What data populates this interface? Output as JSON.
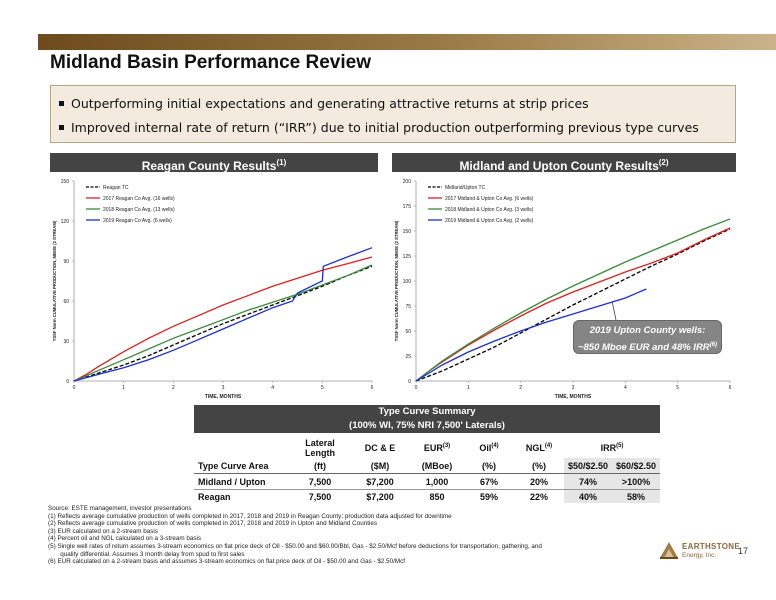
{
  "page": {
    "title": "Midland Basin Performance Review",
    "bullets": [
      "Outperforming initial expectations and generating attractive returns at strip prices",
      "Improved internal rate of return (“IRR”) due to initial production outperforming previous type curves"
    ],
    "page_number": "17"
  },
  "headers": {
    "left": "Reagan County Results",
    "left_sup": "(1)",
    "right": "Midland and Upton County Results",
    "right_sup": "(2)"
  },
  "callout": {
    "line1": "2019 Upton County wells:",
    "line2": "~850 Mboe EUR and 48% IRR",
    "sup": "(6)"
  },
  "chart_data": [
    {
      "type": "line",
      "title": "Reagan County Results(1)",
      "xlabel": "TIME, MONTHS",
      "ylabel": "TSSF Norm CUMULATIVE PRODUCTION, MBOE (2 STREAM)",
      "xlim": [
        0,
        6
      ],
      "ylim": [
        0,
        150
      ],
      "xticks": [
        0,
        1,
        2,
        3,
        4,
        5,
        6
      ],
      "yticks": [
        0,
        30,
        60,
        90,
        120,
        150
      ],
      "legend_position": "top-left",
      "series": [
        {
          "name": "Reagan TC",
          "color": "#000000",
          "dashed": true,
          "x": [
            0,
            0.5,
            1,
            1.5,
            2,
            2.5,
            3,
            3.5,
            4,
            4.5,
            5,
            5.5,
            6
          ],
          "y": [
            0,
            6,
            12,
            19,
            27,
            35,
            43,
            50,
            57,
            64,
            71,
            79,
            86
          ]
        },
        {
          "name": "2017 Reagan Co Avg. (16 wells)",
          "color": "#e02020",
          "dashed": false,
          "x": [
            0,
            0.25,
            0.5,
            1,
            1.5,
            2,
            2.5,
            3,
            3.5,
            4,
            4.5,
            5,
            5.5,
            6
          ],
          "y": [
            0,
            5,
            11,
            22,
            32,
            41,
            49,
            57,
            64,
            71,
            77,
            83,
            88,
            93
          ]
        },
        {
          "name": "2018 Reagan Co Avg. (13 wells)",
          "color": "#3a8a3a",
          "dashed": false,
          "x": [
            0,
            0.25,
            0.5,
            1,
            1.5,
            2,
            2.5,
            3,
            3.5,
            4,
            4.5,
            5,
            5.5,
            6
          ],
          "y": [
            0,
            4,
            8,
            16,
            24,
            32,
            39,
            46,
            53,
            59,
            65,
            72,
            79,
            87
          ]
        },
        {
          "name": "2019 Reagan Co Avg. (6 wells)",
          "color": "#1a2fd0",
          "dashed": false,
          "x": [
            0,
            0.5,
            1,
            1.5,
            2,
            2.5,
            3,
            3.5,
            4,
            4.4,
            4.5,
            5,
            5.02,
            5.5,
            6
          ],
          "y": [
            0,
            5,
            10,
            16,
            23,
            31,
            39,
            47,
            55,
            60,
            66,
            75,
            86,
            93,
            100
          ]
        }
      ]
    },
    {
      "type": "line",
      "title": "Midland and Upton County Results(2)",
      "xlabel": "TIME, MONTHS",
      "ylabel": "TSSF Norm CUMULATIVE PRODUCTION, MBOE (2 STREAM)",
      "xlim": [
        0,
        6
      ],
      "ylim": [
        0,
        200
      ],
      "xticks": [
        0,
        1,
        2,
        3,
        4,
        5,
        6
      ],
      "yticks": [
        0,
        25,
        50,
        75,
        100,
        125,
        150,
        175,
        200
      ],
      "legend_position": "top-left",
      "series": [
        {
          "name": "Midland/Upton TC",
          "color": "#000000",
          "dashed": true,
          "x": [
            0,
            0.5,
            1,
            1.5,
            2,
            2.5,
            3,
            3.5,
            4,
            4.5,
            5,
            5.5,
            6
          ],
          "y": [
            0,
            10,
            22,
            34,
            48,
            62,
            76,
            89,
            102,
            115,
            127,
            140,
            152
          ]
        },
        {
          "name": "2017 Midland & Upton Co Avg. (6 wells)",
          "color": "#e02020",
          "dashed": false,
          "x": [
            0,
            0.25,
            0.5,
            1,
            1.5,
            2,
            2.5,
            3,
            3.5,
            4,
            4.5,
            5,
            5.5,
            6
          ],
          "y": [
            0,
            10,
            19,
            36,
            51,
            65,
            78,
            89,
            99,
            109,
            118,
            128,
            141,
            153
          ]
        },
        {
          "name": "2018 Midland & Upton Co Avg. (3 wells)",
          "color": "#3a8a3a",
          "dashed": false,
          "x": [
            0,
            0.25,
            0.5,
            1,
            1.5,
            2,
            2.5,
            3,
            3.5,
            4,
            4.5,
            5,
            5.5,
            6
          ],
          "y": [
            0,
            10,
            20,
            37,
            53,
            68,
            82,
            95,
            107,
            119,
            130,
            141,
            152,
            162
          ]
        },
        {
          "name": "2019 Midland & Upton Co Avg. (2 wells)",
          "color": "#1a2fd0",
          "dashed": false,
          "x": [
            0,
            0.25,
            0.5,
            1,
            1.5,
            2,
            2.5,
            3,
            3.5,
            4,
            4.4
          ],
          "y": [
            0,
            8,
            16,
            29,
            40,
            50,
            59,
            67,
            75,
            83,
            92
          ]
        }
      ]
    }
  ],
  "table": {
    "title": "Type Curve Summary",
    "subtitle": "(100% WI, 75% NRI 7,500' Laterals)",
    "headers1": [
      "",
      "Lateral Length",
      "DC & E",
      "EUR",
      "Oil",
      "NGL",
      "IRR"
    ],
    "headers1_sups": [
      "",
      "",
      "",
      "(3)",
      "(4)",
      "(4)",
      "(5)"
    ],
    "headers2": [
      "Type Curve Area",
      "(ft)",
      "($M)",
      "(MBoe)",
      "(%)",
      "(%)",
      "$50/$2.50",
      "$60/$2.50"
    ],
    "rows": [
      [
        "Midland / Upton",
        "7,500",
        "$7,200",
        "1,000",
        "67%",
        "20%",
        "74%",
        ">100%"
      ],
      [
        "Reagan",
        "7,500",
        "$7,200",
        "850",
        "59%",
        "22%",
        "40%",
        "58%"
      ]
    ]
  },
  "footnotes": [
    "Source: ESTE management, investor presentations",
    "(1)   Reflects average cumulative production of wells completed in 2017, 2018 and 2019 in Reagan County; production data adjusted for downtime",
    "(2)   Reflects average cumulative production of wells completed in 2017, 2018 and 2019 in Upton and Midland Counties",
    "(3)   EUR calculated on a 2-stream basis",
    "(4)   Percent oil and NGL calculated on a 3-stream basis",
    "(5)   Single well rates of return assumes 3-stream economics on flat price deck of Oil - $50.00 and $60.00/Bbl, Gas - $2.50/Mcf before deductions for transportation, gathering, and",
    "       quality differential. Assumes 3 month delay from spud to first sales",
    "(6)   EUR calculated on a 2-stream basis and assumes 3-stream economics on flat price deck of Oil - $50.00 and Gas - $2.50/Mcf"
  ],
  "logo": {
    "name": "EARTHSTONE",
    "sub": "Energy, Inc."
  }
}
